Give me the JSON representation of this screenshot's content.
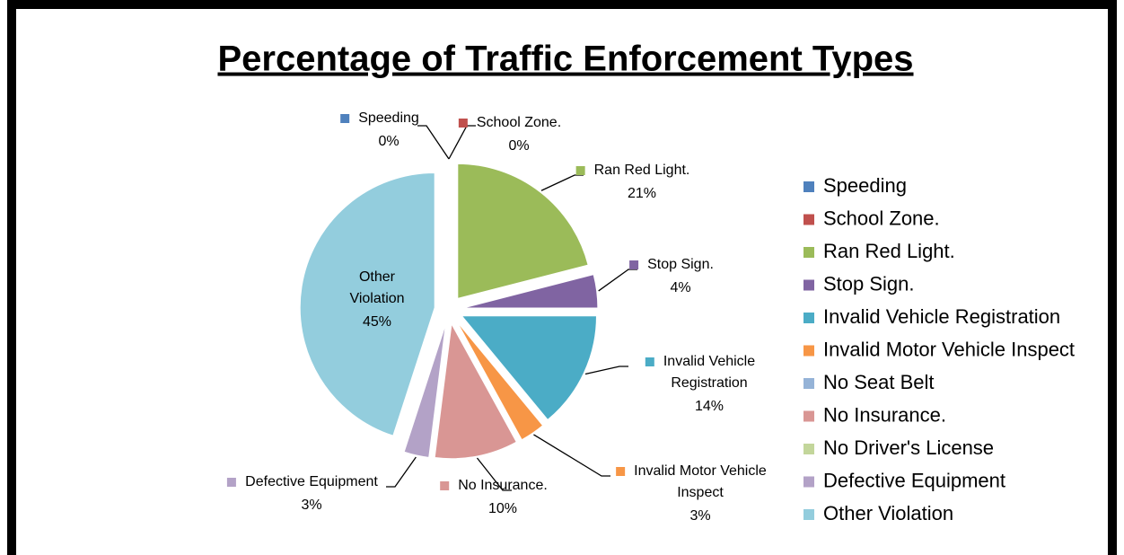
{
  "chart_data": {
    "type": "pie",
    "title": "Percentage of Traffic Enforcement Types",
    "categories": [
      "Speeding",
      "School Zone.",
      "Ran Red Light.",
      "Stop Sign.",
      "Invalid Vehicle Registration",
      "Invalid Motor Vehicle Inspect",
      "No Seat Belt",
      "No Insurance.",
      "No Driver's License",
      "Defective Equipment",
      "Other Violation"
    ],
    "values": [
      0,
      0,
      21,
      4,
      14,
      3,
      0,
      10,
      0,
      3,
      45
    ],
    "value_labels": [
      "0%",
      "0%",
      "21%",
      "4%",
      "14%",
      "3%",
      null,
      "10%",
      null,
      "3%",
      "45%"
    ],
    "colors": [
      "#4f81bd",
      "#c0504d",
      "#9bbb59",
      "#8064a2",
      "#4bacc6",
      "#f79646",
      "#95b3d7",
      "#d99694",
      "#c3d69b",
      "#b3a2c7",
      "#93cddd"
    ],
    "legend": "right"
  }
}
